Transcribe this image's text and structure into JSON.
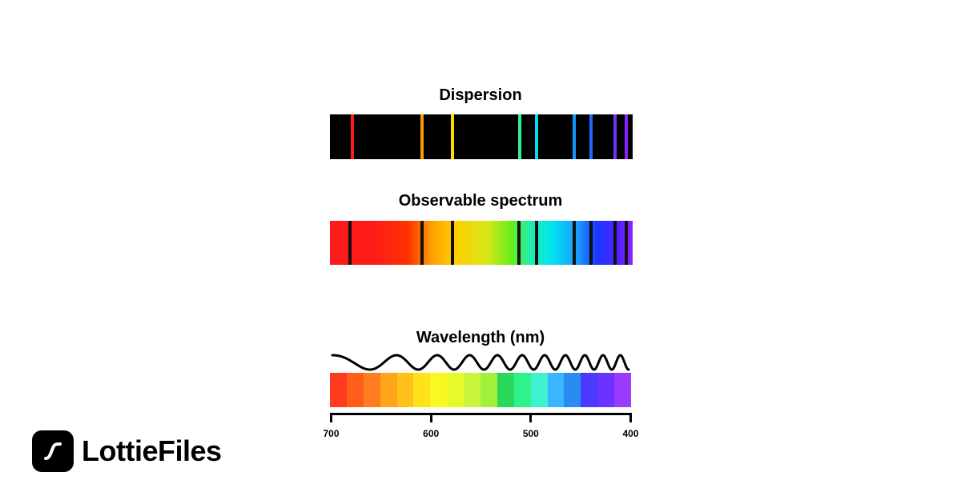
{
  "dispersion": {
    "title": "Dispersion",
    "lines": [
      {
        "position": 0.074,
        "color": "#ff1a1a"
      },
      {
        "position": 0.305,
        "color": "#ff9900"
      },
      {
        "position": 0.405,
        "color": "#ffdd00"
      },
      {
        "position": 0.627,
        "color": "#33ee99"
      },
      {
        "position": 0.683,
        "color": "#00ddee"
      },
      {
        "position": 0.807,
        "color": "#1199ff"
      },
      {
        "position": 0.862,
        "color": "#2266ff"
      },
      {
        "position": 0.943,
        "color": "#6633ff"
      },
      {
        "position": 0.98,
        "color": "#8822ff"
      }
    ]
  },
  "observable": {
    "title": "Observable spectrum",
    "lines": [
      0.066,
      0.305,
      0.405,
      0.625,
      0.683,
      0.807,
      0.862,
      0.943,
      0.98
    ]
  },
  "wavelength": {
    "title": "Wavelength (nm)",
    "swatches": [
      "#ff3b1f",
      "#ff5e1a",
      "#ff7c1f",
      "#ffa51a",
      "#ffc21a",
      "#ffe21a",
      "#faf91f",
      "#e6f92b",
      "#c9f53a",
      "#a1f03a",
      "#2ad95a",
      "#2ef28a",
      "#3ef2d0",
      "#38b6ff",
      "#2a8cf2",
      "#4a3aff",
      "#6a33ff",
      "#9a3aff"
    ],
    "ticks": [
      {
        "value": 700,
        "label": "700"
      },
      {
        "value": 600,
        "label": "600"
      },
      {
        "value": 500,
        "label": "500"
      },
      {
        "value": 400,
        "label": "400"
      }
    ],
    "range": [
      700,
      400
    ]
  },
  "brand": {
    "name": "LottieFiles",
    "icon": "lottiefiles-logo-icon"
  }
}
